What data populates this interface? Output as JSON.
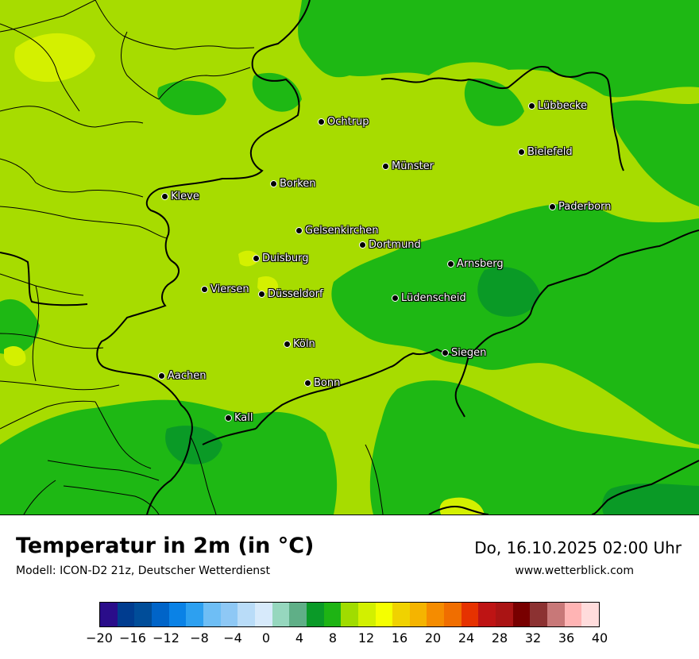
{
  "title": "Temperatur in 2m (in °C)",
  "model": "Modell: ICON-D2 21z, Deutscher Wetterdienst",
  "datetime": "Do, 16.10.2025 02:00 Uhr",
  "website": "www.wetterblick.com",
  "colors": {
    "light_green": "#a7dc00",
    "mid_green": "#1eb814",
    "dark_green": "#0a9a26",
    "yellow_green": "#d4f000",
    "border": "#000000"
  },
  "cities": [
    {
      "name": "Ochtrup"
    },
    {
      "name": "Lübbecke"
    },
    {
      "name": "Bielefeld"
    },
    {
      "name": "Münster"
    },
    {
      "name": "Borken"
    },
    {
      "name": "Kleve"
    },
    {
      "name": "Paderborn"
    },
    {
      "name": "Gelsenkirchen"
    },
    {
      "name": "Dortmund"
    },
    {
      "name": "Duisburg"
    },
    {
      "name": "Arnsberg"
    },
    {
      "name": "Viersen"
    },
    {
      "name": "Düsseldorf"
    },
    {
      "name": "Lüdenscheid"
    },
    {
      "name": "Köln"
    },
    {
      "name": "Siegen"
    },
    {
      "name": "Aachen"
    },
    {
      "name": "Bonn"
    },
    {
      "name": "Kall"
    }
  ],
  "legend": {
    "swatch_colors": [
      "#2a0d8a",
      "#003c8f",
      "#004d99",
      "#0064c8",
      "#0a82e6",
      "#2da0f0",
      "#6ebef5",
      "#8ec8f5",
      "#b9dcf8",
      "#d7eafb",
      "#96d7be",
      "#5faf87",
      "#0a9a28",
      "#1eb414",
      "#a0dc00",
      "#d2f000",
      "#f5ff00",
      "#f0d200",
      "#f5b400",
      "#f58c00",
      "#f06e00",
      "#e63200",
      "#be1414",
      "#aa1414",
      "#780000",
      "#8c3232",
      "#c87878",
      "#ffb4b4",
      "#ffdcdc"
    ],
    "tick_labels": [
      "−20",
      "−16",
      "−12",
      "−8",
      "−4",
      "0",
      "4",
      "8",
      "12",
      "16",
      "20",
      "24",
      "28",
      "32",
      "36",
      "40"
    ]
  }
}
